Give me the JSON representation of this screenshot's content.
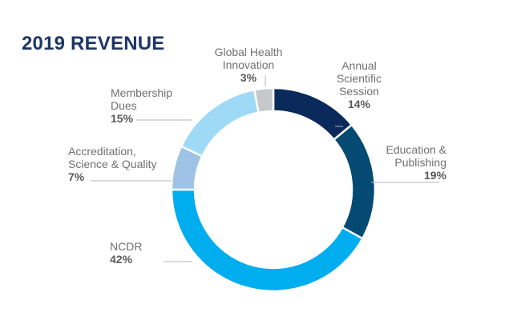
{
  "chart_data": {
    "type": "pie",
    "donut": true,
    "title": "2019 REVENUE",
    "slices": [
      {
        "label": [
          "Annual",
          "Scientific",
          "Session"
        ],
        "value": 14,
        "value_label": "14%",
        "color": "#0b2a5c"
      },
      {
        "label": [
          "Education &",
          "Publishing"
        ],
        "value": 19,
        "value_label": "19%",
        "color": "#054a72"
      },
      {
        "label": [
          "NCDR"
        ],
        "value": 42,
        "value_label": "42%",
        "color": "#00adef"
      },
      {
        "label": [
          "Accreditation,",
          "Science & Quality"
        ],
        "value": 7,
        "value_label": "7%",
        "color": "#9fc3e6"
      },
      {
        "label": [
          "Membership",
          "Dues"
        ],
        "value": 15,
        "value_label": "15%",
        "color": "#9ed9f6"
      },
      {
        "label": [
          "Global Health",
          "Innovation"
        ],
        "value": 3,
        "value_label": "3%",
        "color": "#c7c8ca"
      }
    ]
  }
}
